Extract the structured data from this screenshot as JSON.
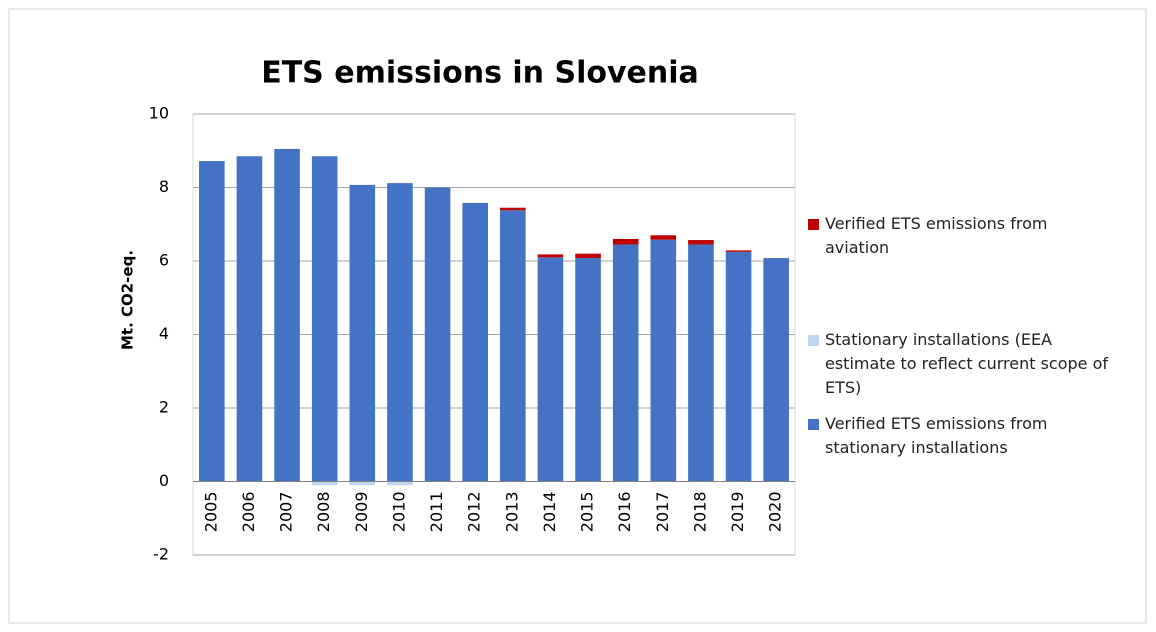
{
  "chart_data": {
    "type": "stacked-bar",
    "title": "ETS emissions in Slovenia",
    "y_label": "Mt. CO2-eq.",
    "categories": [
      "2005",
      "2006",
      "2007",
      "2008",
      "2009",
      "2010",
      "2011",
      "2012",
      "2013",
      "2014",
      "2015",
      "2016",
      "2017",
      "2018",
      "2019",
      "2020"
    ],
    "series": [
      {
        "name": "Verified ETS emissions from stationary installations",
        "color": "#4472c4",
        "values": [
          8.72,
          8.85,
          9.05,
          8.85,
          8.07,
          8.12,
          8.0,
          7.58,
          7.38,
          6.1,
          6.08,
          6.45,
          6.58,
          6.45,
          6.25,
          6.08
        ]
      },
      {
        "name": "Stationary installations (EEA estimate to reflect current scope of ETS)",
        "color": "#bdd7ee",
        "values": [
          0,
          0,
          0,
          -0.1,
          -0.1,
          -0.1,
          0,
          0,
          0,
          0,
          0,
          0,
          0,
          0,
          0,
          0
        ]
      },
      {
        "name": "Verified ETS emissions from aviation",
        "color": "#c00000",
        "values": [
          0,
          0,
          0,
          0,
          0,
          0,
          0,
          0,
          0.07,
          0.08,
          0.12,
          0.15,
          0.12,
          0.12,
          0.04,
          0
        ]
      }
    ],
    "ylim": [
      -2,
      10
    ],
    "yticks": [
      -2,
      0,
      2,
      4,
      6,
      8,
      10
    ],
    "grid": true
  }
}
